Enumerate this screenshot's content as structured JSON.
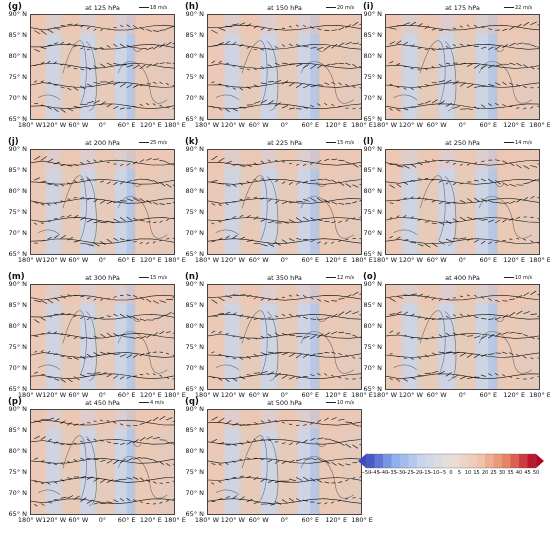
{
  "figure": {
    "colorbar": {
      "ticks": [
        "−50",
        "−45",
        "−40",
        "−35",
        "−30",
        "−25",
        "−20",
        "−15",
        "−10",
        "−5",
        "0",
        "5",
        "10",
        "15",
        "20",
        "25",
        "30",
        "35",
        "40",
        "45",
        "50"
      ],
      "min": -50,
      "max": 50,
      "colors": {
        "neg_strong": "#3b4cc0",
        "neg_mid": "#8caeea",
        "neg_light": "#c9d6ec",
        "neutral": "#e8e0d8",
        "pos_light": "#f1c6b0",
        "pos_mid": "#e88060",
        "pos_strong": "#b40426"
      }
    },
    "y_ticks": [
      "90° N",
      "85° N",
      "80° N",
      "75° N",
      "70° N",
      "65° N"
    ],
    "x_ticks": [
      "180° W",
      "120° W",
      "60° W",
      "0°",
      "60° E",
      "120° E",
      "180° E"
    ]
  },
  "chart_data": [
    {
      "type": "heatmap",
      "label": "(g)",
      "title": "at 125 hPa",
      "scale_vector": "18 m/s"
    },
    {
      "type": "heatmap",
      "label": "(h)",
      "title": "at 150 hPa",
      "scale_vector": "20 m/s"
    },
    {
      "type": "heatmap",
      "label": "(i)",
      "title": "at 175 hPa",
      "scale_vector": "22 m/s"
    },
    {
      "type": "heatmap",
      "label": "(j)",
      "title": "at 200 hPa",
      "scale_vector": "25 m/s"
    },
    {
      "type": "heatmap",
      "label": "(k)",
      "title": "at 225 hPa",
      "scale_vector": "15 m/s"
    },
    {
      "type": "heatmap",
      "label": "(l)",
      "title": "at 250 hPa",
      "scale_vector": "14 m/s"
    },
    {
      "type": "heatmap",
      "label": "(m)",
      "title": "at 300 hPa",
      "scale_vector": "15 m/s"
    },
    {
      "type": "heatmap",
      "label": "(n)",
      "title": "at 350 hPa",
      "scale_vector": "12 m/s"
    },
    {
      "type": "heatmap",
      "label": "(o)",
      "title": "at 400 hPa",
      "scale_vector": "10 m/s"
    },
    {
      "type": "heatmap",
      "label": "(p)",
      "title": "at 450 hPa",
      "scale_vector": "4 m/s"
    },
    {
      "type": "heatmap",
      "label": "(q)",
      "title": "at 500 hPa",
      "scale_vector": "10 m/s"
    }
  ]
}
